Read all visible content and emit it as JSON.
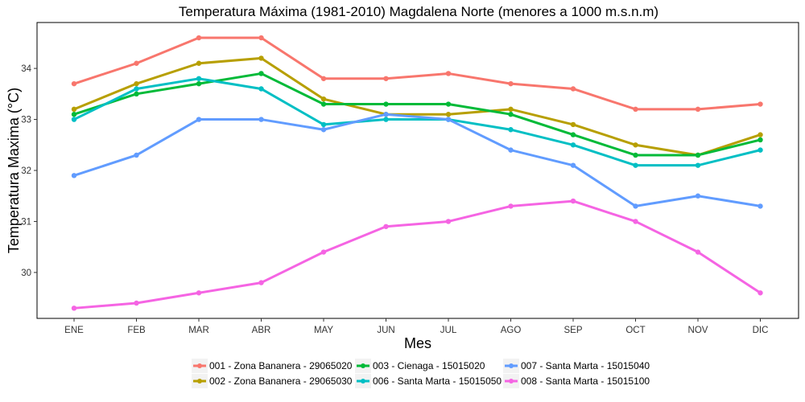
{
  "chart_data": {
    "type": "line",
    "title": "Temperatura Máxima (1981-2010) Magdalena Norte (menores a 1000 m.s.n.m)",
    "xlabel": "Mes",
    "ylabel": "Temperatura Maxima (°C)",
    "categories": [
      "ENE",
      "FEB",
      "MAR",
      "ABR",
      "MAY",
      "JUN",
      "JUL",
      "AGO",
      "SEP",
      "OCT",
      "NOV",
      "DIC"
    ],
    "ylim": [
      29.1,
      34.9
    ],
    "yticks": [
      30,
      31,
      32,
      33,
      34
    ],
    "grid": false,
    "legend_position": "bottom",
    "series": [
      {
        "name": "001 - Zona Bananera - 29065020",
        "color": "#F8766D",
        "values": [
          33.7,
          34.1,
          34.6,
          34.6,
          33.8,
          33.8,
          33.9,
          33.7,
          33.6,
          33.2,
          33.2,
          33.3
        ]
      },
      {
        "name": "002 - Zona Bananera - 29065030",
        "color": "#B79F00",
        "values": [
          33.2,
          33.7,
          34.1,
          34.2,
          33.4,
          33.1,
          33.1,
          33.2,
          32.9,
          32.5,
          32.3,
          32.7
        ]
      },
      {
        "name": "003 - Cienaga - 15015020",
        "color": "#00BA38",
        "values": [
          33.1,
          33.5,
          33.7,
          33.9,
          33.3,
          33.3,
          33.3,
          33.1,
          32.7,
          32.3,
          32.3,
          32.6
        ]
      },
      {
        "name": "006 - Santa Marta - 15015050",
        "color": "#00BFC4",
        "values": [
          33.0,
          33.6,
          33.8,
          33.6,
          32.9,
          33.0,
          33.0,
          32.8,
          32.5,
          32.1,
          32.1,
          32.4
        ]
      },
      {
        "name": "007 - Santa Marta - 15015040",
        "color": "#619CFF",
        "values": [
          31.9,
          32.3,
          33.0,
          33.0,
          32.8,
          33.1,
          33.0,
          32.4,
          32.1,
          31.3,
          31.5,
          31.3
        ]
      },
      {
        "name": "008 - Santa Marta - 15015100",
        "color": "#F564E3",
        "values": [
          29.3,
          29.4,
          29.6,
          29.8,
          30.4,
          30.9,
          31.0,
          31.3,
          31.4,
          31.0,
          30.4,
          29.6
        ]
      }
    ]
  }
}
